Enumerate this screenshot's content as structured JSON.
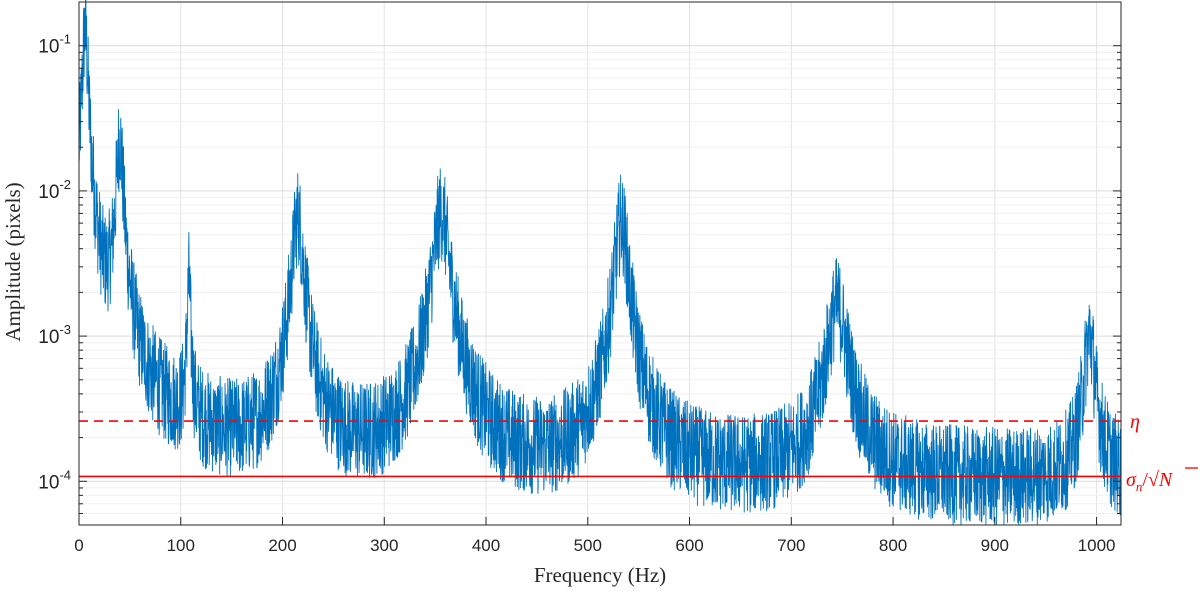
{
  "chart_data": {
    "type": "line",
    "title": "",
    "xlabel": "Frequency (Hz)",
    "ylabel": "Amplitude (pixels)",
    "xlim": [
      0,
      1024
    ],
    "ylim": [
      5e-05,
      0.2
    ],
    "yscale": "log",
    "grid": true,
    "xticks": [
      0,
      100,
      200,
      300,
      400,
      500,
      600,
      700,
      800,
      900,
      1000
    ],
    "xtick_labels": [
      "0",
      "100",
      "200",
      "300",
      "400",
      "500",
      "600",
      "700",
      "800",
      "900",
      "1000"
    ],
    "yticks": [
      0.0001,
      0.001,
      0.01,
      0.1
    ],
    "ytick_labels": [
      {
        "base": "10",
        "exp": "-4"
      },
      {
        "base": "10",
        "exp": "-3"
      },
      {
        "base": "10",
        "exp": "-2"
      },
      {
        "base": "10",
        "exp": "-1"
      }
    ],
    "series": [
      {
        "style": "solid",
        "color": "#0072BD",
        "peaks": [
          {
            "f": 6,
            "amp": 0.13,
            "width": 2.5
          },
          {
            "f": 40,
            "amp": 0.022,
            "width": 3
          },
          {
            "f": 108,
            "amp": 0.0022,
            "width": 1.5
          },
          {
            "f": 215,
            "amp": 0.0065,
            "width": 5
          },
          {
            "f": 356,
            "amp": 0.007,
            "width": 7
          },
          {
            "f": 533,
            "amp": 0.006,
            "width": 6
          },
          {
            "f": 745,
            "amp": 0.0015,
            "width": 9
          },
          {
            "f": 993,
            "amp": 0.0009,
            "width": 5
          }
        ],
        "noise_floor": 9.5e-05
      }
    ],
    "reference_lines": [
      {
        "label": "η",
        "y": 0.00026,
        "style": "dashed",
        "color": "#FF0000"
      },
      {
        "label_parts": {
          "sigma": "σ",
          "sub": "n",
          "slash": "/",
          "root": "√",
          "n": "N"
        },
        "y": 0.000108,
        "style": "solid",
        "color": "#FF0000"
      }
    ]
  }
}
